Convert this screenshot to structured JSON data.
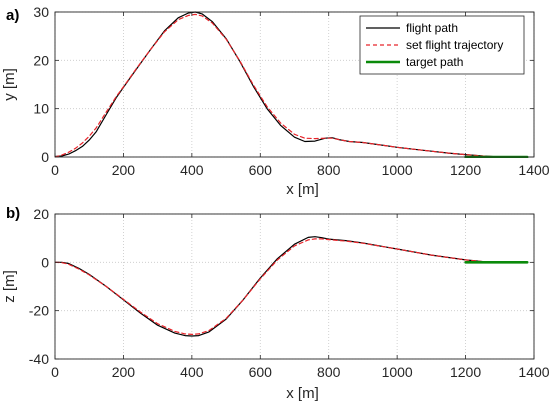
{
  "chart_data": [
    {
      "type": "line",
      "panel_label": "a)",
      "xlabel": "x [m]",
      "ylabel": "y [m]",
      "xlim": [
        0,
        1400
      ],
      "ylim": [
        0,
        30
      ],
      "xticks": [
        0,
        200,
        400,
        600,
        800,
        1000,
        1200,
        1400
      ],
      "yticks": [
        0,
        10,
        20,
        30
      ],
      "grid": true,
      "legend": {
        "placement": "top-right",
        "entries": [
          {
            "label": "flight path",
            "color": "#000000",
            "style": "solid"
          },
          {
            "label": "set flight trajectory",
            "color": "#e8242a",
            "style": "dashed"
          },
          {
            "label": "target path",
            "color": "#0a8a0a",
            "style": "solid-thick"
          }
        ]
      },
      "series": [
        {
          "name": "flight path",
          "color": "#000000",
          "style": "solid",
          "x": [
            0,
            20,
            40,
            60,
            80,
            100,
            120,
            150,
            180,
            200,
            240,
            280,
            320,
            360,
            390,
            410,
            430,
            460,
            500,
            540,
            580,
            620,
            660,
            700,
            730,
            760,
            790,
            810,
            830,
            860,
            900,
            950,
            1000,
            1050,
            1100,
            1150,
            1200,
            1250,
            1300
          ],
          "y": [
            0.1,
            0.2,
            0.6,
            1.3,
            2.2,
            3.5,
            5.2,
            8.8,
            12.4,
            14.4,
            18.4,
            22.3,
            26.1,
            28.8,
            29.8,
            30.0,
            29.6,
            28.0,
            24.5,
            19.8,
            14.6,
            10.0,
            6.5,
            4.1,
            3.2,
            3.3,
            3.9,
            4.0,
            3.6,
            3.2,
            3.0,
            2.5,
            2.0,
            1.6,
            1.2,
            0.8,
            0.5,
            0.2,
            0.0
          ]
        },
        {
          "name": "set flight trajectory",
          "color": "#e8242a",
          "style": "dashed",
          "x": [
            0,
            20,
            40,
            60,
            80,
            100,
            120,
            150,
            180,
            200,
            240,
            280,
            320,
            360,
            390,
            410,
            430,
            460,
            500,
            540,
            580,
            620,
            660,
            700,
            730,
            760,
            790,
            810,
            830,
            860,
            900,
            950,
            1000,
            1050,
            1100,
            1150,
            1200,
            1250,
            1300
          ],
          "y": [
            0.0,
            0.4,
            1.0,
            1.8,
            2.9,
            4.3,
            6.0,
            9.3,
            12.6,
            14.5,
            18.5,
            22.3,
            25.9,
            28.4,
            29.3,
            29.5,
            29.2,
            27.7,
            24.4,
            19.9,
            14.9,
            10.4,
            7.0,
            4.7,
            3.9,
            3.8,
            3.9,
            3.9,
            3.6,
            3.2,
            3.0,
            2.5,
            2.0,
            1.6,
            1.2,
            0.8,
            0.5,
            0.2,
            0.0
          ]
        },
        {
          "name": "target path",
          "color": "#0a8a0a",
          "style": "solid-thick",
          "x": [
            1200,
            1380
          ],
          "y": [
            0,
            0
          ]
        }
      ]
    },
    {
      "type": "line",
      "panel_label": "b)",
      "xlabel": "x [m]",
      "ylabel": "z [m]",
      "xlim": [
        0,
        1400
      ],
      "ylim": [
        -40,
        20
      ],
      "xticks": [
        0,
        200,
        400,
        600,
        800,
        1000,
        1200,
        1400
      ],
      "yticks": [
        -40,
        -20,
        0,
        20
      ],
      "grid": true,
      "series": [
        {
          "name": "flight path",
          "color": "#000000",
          "style": "solid",
          "x": [
            0,
            20,
            40,
            70,
            100,
            150,
            200,
            250,
            300,
            350,
            380,
            400,
            420,
            450,
            500,
            550,
            600,
            650,
            700,
            740,
            760,
            780,
            800,
            850,
            900,
            1000,
            1100,
            1200,
            1250,
            1300
          ],
          "y": [
            0.0,
            0.0,
            -0.5,
            -2.5,
            -5.0,
            -10.0,
            -15.5,
            -21.0,
            -26.0,
            -29.3,
            -30.3,
            -30.5,
            -30.3,
            -28.8,
            -23.5,
            -15.5,
            -6.5,
            1.5,
            7.5,
            10.3,
            10.6,
            10.2,
            9.6,
            9.0,
            8.0,
            5.5,
            3.0,
            1.0,
            0.3,
            0.0
          ]
        },
        {
          "name": "set flight trajectory",
          "color": "#e8242a",
          "style": "dashed",
          "x": [
            0,
            20,
            40,
            70,
            100,
            150,
            200,
            250,
            300,
            350,
            380,
            400,
            420,
            450,
            500,
            550,
            600,
            650,
            700,
            740,
            760,
            780,
            800,
            850,
            900,
            1000,
            1100,
            1200,
            1250,
            1300
          ],
          "y": [
            0.0,
            -0.1,
            -0.8,
            -2.8,
            -5.2,
            -10.0,
            -15.3,
            -20.6,
            -25.4,
            -28.6,
            -29.6,
            -29.8,
            -29.6,
            -28.2,
            -23.2,
            -15.5,
            -6.8,
            1.0,
            6.8,
            9.3,
            9.7,
            9.7,
            9.4,
            8.8,
            7.9,
            5.5,
            3.0,
            1.0,
            0.3,
            0.0
          ]
        },
        {
          "name": "target path",
          "color": "#0a8a0a",
          "style": "solid-thick",
          "x": [
            1200,
            1380
          ],
          "y": [
            0,
            0
          ]
        }
      ]
    }
  ]
}
